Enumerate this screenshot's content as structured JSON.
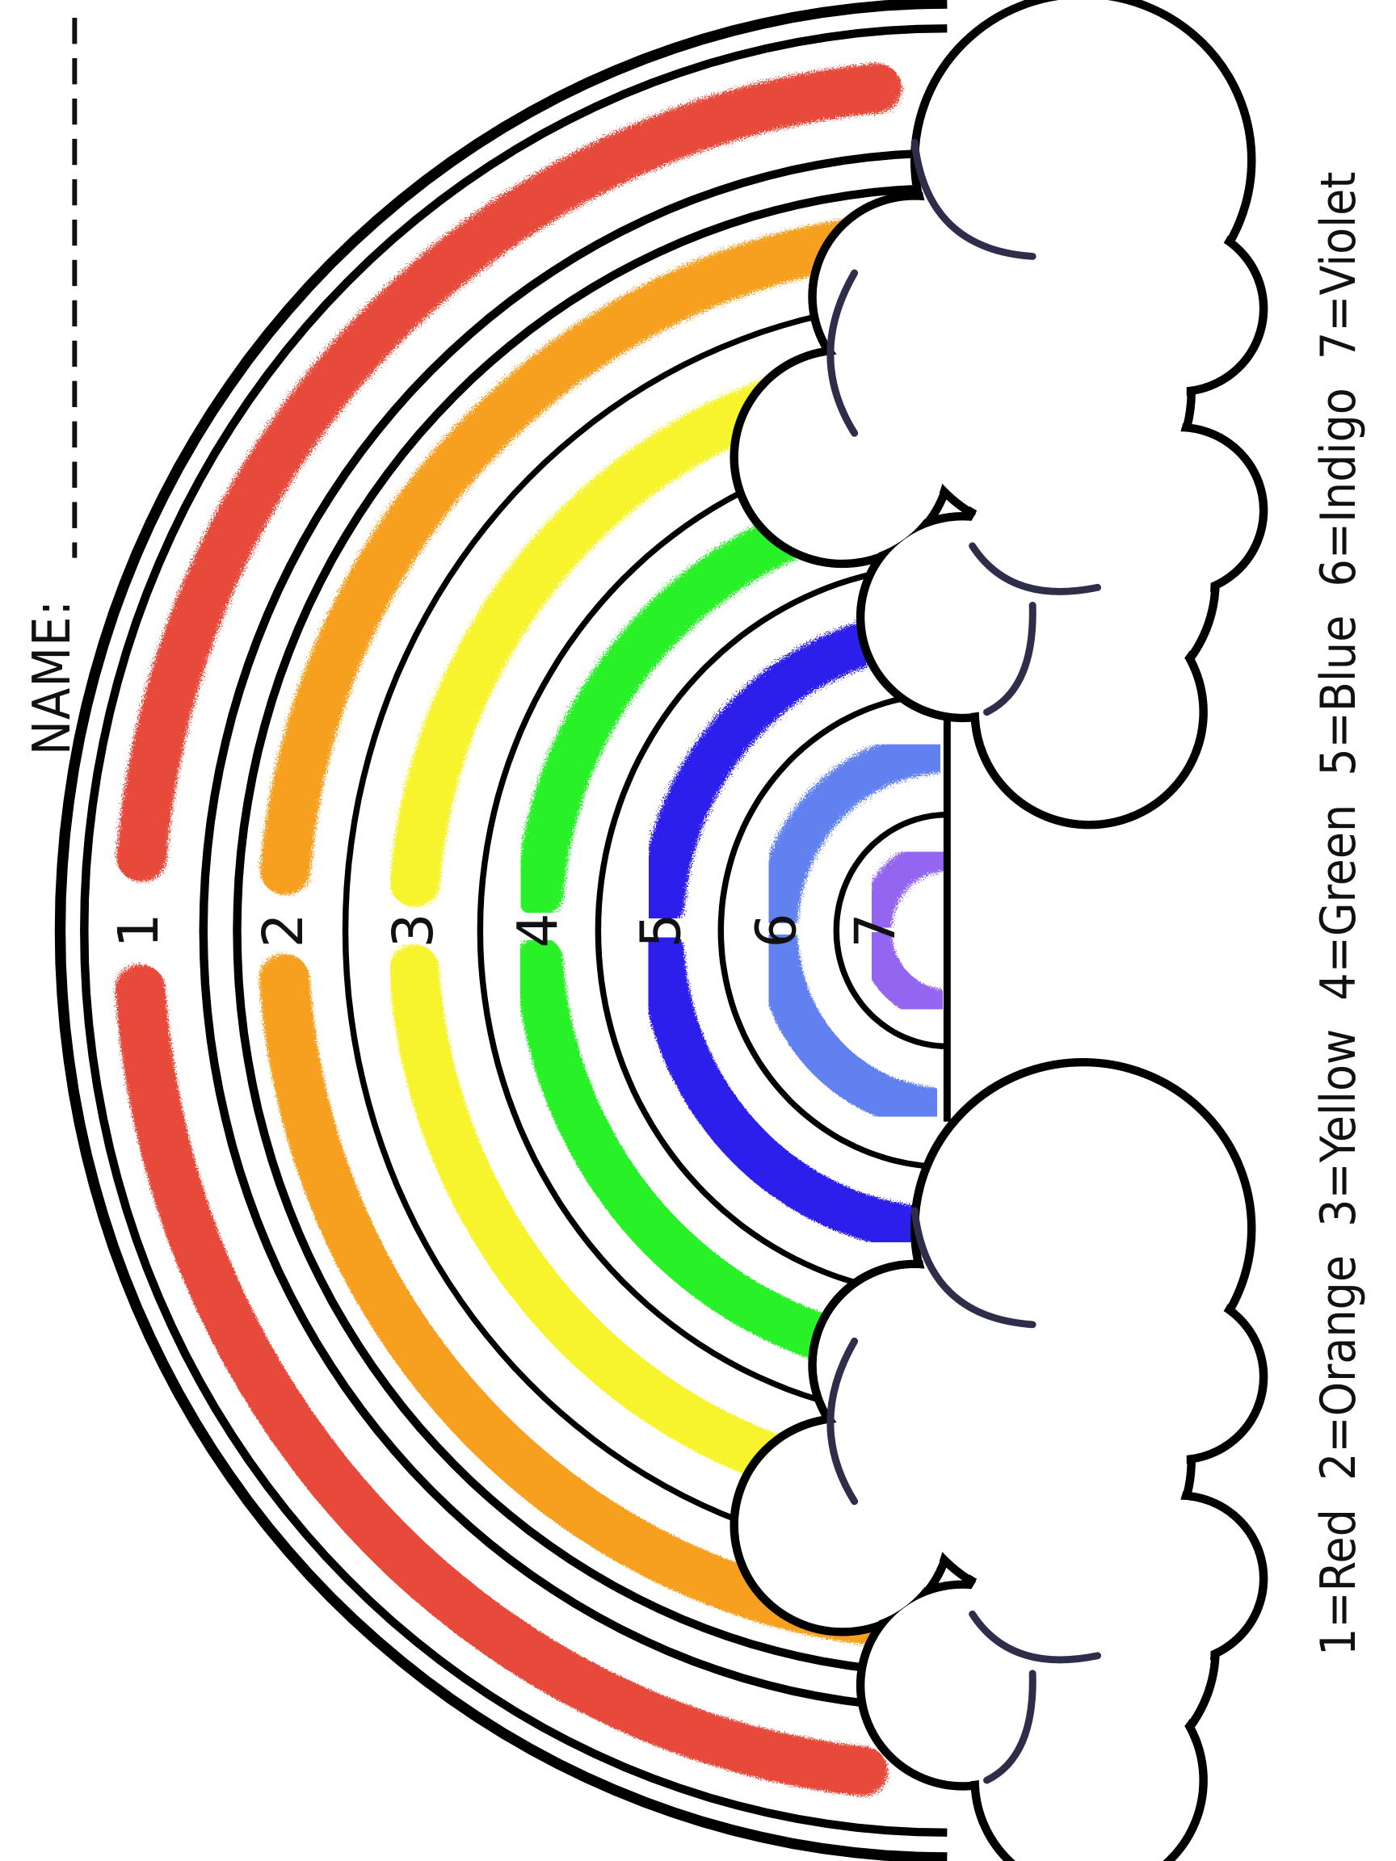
{
  "worksheet": {
    "name_label": "NAME:",
    "legend": "1=Red  2=Orange  3=Yellow  4=Green  5=Blue  6=Indigo  7=Violet"
  },
  "bands": [
    {
      "number": "1",
      "color_name": "Red",
      "color": "#e63b2a"
    },
    {
      "number": "2",
      "color_name": "Orange",
      "color": "#f7980f"
    },
    {
      "number": "3",
      "color_name": "Yellow",
      "color": "#f7f21a"
    },
    {
      "number": "4",
      "color_name": "Green",
      "color": "#16f016"
    },
    {
      "number": "5",
      "color_name": "Blue",
      "color": "#1a10ea"
    },
    {
      "number": "6",
      "color_name": "Indigo",
      "color": "#5577f0"
    },
    {
      "number": "7",
      "color_name": "Violet",
      "color": "#8a58f0"
    }
  ],
  "outline_color": "#000000",
  "cloud_detail_color": "#2e2d4a"
}
